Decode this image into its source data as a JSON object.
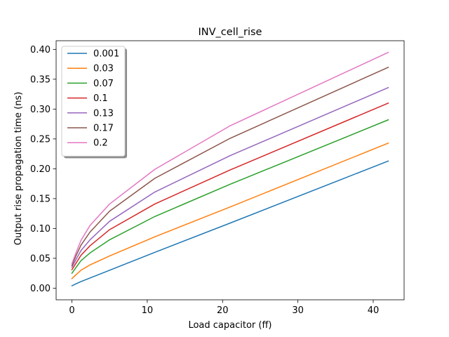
{
  "chart_data": {
    "type": "line",
    "title": "INV_cell_rise",
    "xlabel": "Load capacitor (ff)",
    "ylabel": "Output rise propagation time (ns)",
    "xlim": [
      -2.1,
      44.1
    ],
    "ylim": [
      -0.0195,
      0.4145
    ],
    "xticks": [
      0,
      10,
      20,
      30,
      40
    ],
    "yticks": [
      0.0,
      0.05,
      0.1,
      0.15,
      0.2,
      0.25,
      0.3,
      0.35,
      0.4
    ],
    "grid": false,
    "legend_position": "top-left",
    "x": [
      0.0,
      0.5,
      1.2,
      2.4,
      5.0,
      11.0,
      21.0,
      42.0
    ],
    "series": [
      {
        "name": "0.001",
        "color": "#1f77b4",
        "values": [
          0.004,
          0.007,
          0.011,
          0.017,
          0.03,
          0.06,
          0.109,
          0.213
        ]
      },
      {
        "name": "0.03",
        "color": "#ff7f0e",
        "values": [
          0.016,
          0.022,
          0.03,
          0.039,
          0.054,
          0.086,
          0.136,
          0.243
        ]
      },
      {
        "name": "0.07",
        "color": "#2ca02c",
        "values": [
          0.025,
          0.034,
          0.046,
          0.059,
          0.081,
          0.12,
          0.174,
          0.282
        ]
      },
      {
        "name": "0.1",
        "color": "#d62728",
        "values": [
          0.031,
          0.041,
          0.055,
          0.071,
          0.098,
          0.141,
          0.198,
          0.31
        ]
      },
      {
        "name": "0.13",
        "color": "#9467bd",
        "values": [
          0.035,
          0.047,
          0.063,
          0.081,
          0.112,
          0.161,
          0.222,
          0.336
        ]
      },
      {
        "name": "0.17",
        "color": "#8c564b",
        "values": [
          0.038,
          0.053,
          0.072,
          0.094,
          0.129,
          0.184,
          0.251,
          0.37
        ]
      },
      {
        "name": "0.2",
        "color": "#e377c2",
        "values": [
          0.041,
          0.058,
          0.08,
          0.105,
          0.141,
          0.199,
          0.272,
          0.395
        ]
      }
    ]
  }
}
